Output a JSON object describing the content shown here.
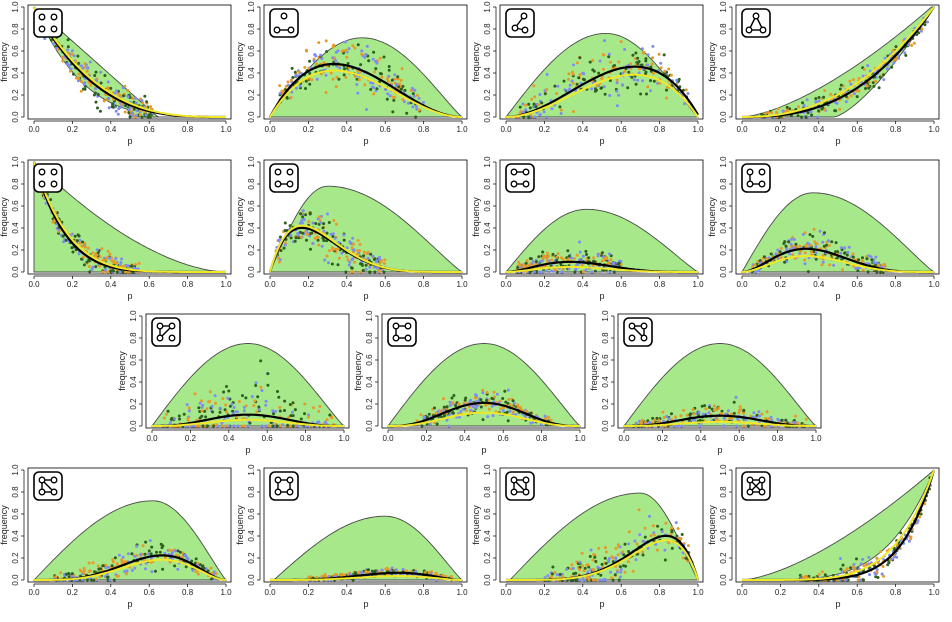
{
  "figure": {
    "description_axes": {
      "xlabel": "p",
      "ylabel": "frequency"
    },
    "colors": {
      "envelope_fill": "#a6e88a",
      "envelope_stroke": "#4a4a4a",
      "expected_curve": "#000000",
      "fitted_curve": "#f2e82a",
      "points": [
        "#2f5f1e",
        "#e89a28",
        "#7f8cf0"
      ]
    }
  },
  "chart_data": [
    {
      "type": "scatter",
      "panel": 1,
      "graph": "4 isolated nodes",
      "icon": "empty4",
      "xlabel": "p",
      "ylabel": "frequency",
      "xlim": [
        0,
        1
      ],
      "ylim": [
        0,
        1
      ],
      "xticks": [
        "0.0",
        "0.2",
        "0.4",
        "0.6",
        "0.8",
        "1.0"
      ],
      "yticks": [
        "0.0",
        "0.2",
        "0.4",
        "0.6",
        "0.8",
        "1.0"
      ],
      "model": "iso4",
      "envelope": "iso4",
      "cloud": {
        "from": 0.05,
        "to": 0.62,
        "spread": 0.08
      }
    },
    {
      "type": "scatter",
      "panel": 2,
      "graph": "single edge + 2 isolated",
      "icon": "edge1",
      "xlabel": "p",
      "ylabel": "frequency",
      "xlim": [
        0,
        1
      ],
      "ylim": [
        0,
        1
      ],
      "xticks": [
        "0.0",
        "0.2",
        "0.4",
        "0.6",
        "0.8",
        "1.0"
      ],
      "yticks": [
        "0.0",
        "0.2",
        "0.4",
        "0.6",
        "0.8",
        "1.0"
      ],
      "model": "edge1",
      "envelope": "env_edge1",
      "cloud": {
        "from": 0.05,
        "to": 0.8,
        "spread": 0.12
      }
    },
    {
      "type": "scatter",
      "panel": 3,
      "graph": "path of 2 edges + isolated",
      "icon": "path2",
      "xlabel": "p",
      "ylabel": "frequency",
      "xlim": [
        0,
        1
      ],
      "ylim": [
        0,
        1
      ],
      "xticks": [
        "0.0",
        "0.2",
        "0.4",
        "0.6",
        "0.8",
        "1.0"
      ],
      "yticks": [
        "0.0",
        "0.2",
        "0.4",
        "0.6",
        "0.8",
        "1.0"
      ],
      "model": "path2",
      "envelope": "env_path2",
      "cloud": {
        "from": 0.05,
        "to": 0.95,
        "spread": 0.12
      }
    },
    {
      "type": "scatter",
      "panel": 4,
      "graph": "triangle + isolated",
      "icon": "tri",
      "xlabel": "p",
      "ylabel": "frequency",
      "xlim": [
        0,
        1
      ],
      "ylim": [
        0,
        1
      ],
      "xticks": [
        "0.0",
        "0.2",
        "0.4",
        "0.6",
        "0.8",
        "1.0"
      ],
      "yticks": [
        "0.0",
        "0.2",
        "0.4",
        "0.6",
        "0.8",
        "1.0"
      ],
      "model": "tri",
      "envelope": "env_tri",
      "cloud": {
        "from": 0.1,
        "to": 0.97,
        "spread": 0.06
      }
    },
    {
      "type": "scatter",
      "panel": 5,
      "graph": "4 isolated nodes (second model)",
      "icon": "empty4",
      "xlabel": "p",
      "ylabel": "frequency",
      "xlim": [
        0,
        1
      ],
      "ylim": [
        0,
        1
      ],
      "xticks": [
        "0.0",
        "0.2",
        "0.4",
        "0.6",
        "0.8",
        "1.0"
      ],
      "yticks": [
        "0.0",
        "0.2",
        "0.4",
        "0.6",
        "0.8",
        "1.0"
      ],
      "model": "iso4b",
      "envelope": "env_iso4b",
      "cloud": {
        "from": 0.03,
        "to": 0.55,
        "spread": 0.06
      }
    },
    {
      "type": "scatter",
      "panel": 6,
      "graph": "single edge (second model)",
      "icon": "edge1b",
      "xlabel": "p",
      "ylabel": "frequency",
      "xlim": [
        0,
        1
      ],
      "ylim": [
        0,
        1
      ],
      "xticks": [
        "0.0",
        "0.2",
        "0.4",
        "0.6",
        "0.8",
        "1.0"
      ],
      "yticks": [
        "0.0",
        "0.2",
        "0.4",
        "0.6",
        "0.8",
        "1.0"
      ],
      "model": "edge1b",
      "envelope": "env_edge1b",
      "cloud": {
        "from": 0.03,
        "to": 0.6,
        "spread": 0.1
      }
    },
    {
      "type": "scatter",
      "panel": 7,
      "graph": "two disjoint edges",
      "icon": "twoedges",
      "xlabel": "p",
      "ylabel": "frequency",
      "xlim": [
        0,
        1
      ],
      "ylim": [
        0,
        1
      ],
      "xticks": [
        "0.0",
        "0.2",
        "0.4",
        "0.6",
        "0.8",
        "1.0"
      ],
      "yticks": [
        "0.0",
        "0.2",
        "0.4",
        "0.6",
        "0.8",
        "1.0"
      ],
      "model": "twoedges",
      "envelope": "env_twoedges",
      "cloud": {
        "from": 0.05,
        "to": 0.6,
        "spread": 0.07
      }
    },
    {
      "type": "scatter",
      "panel": 8,
      "graph": "path of 2 edges",
      "icon": "path2b",
      "xlabel": "p",
      "ylabel": "frequency",
      "xlim": [
        0,
        1
      ],
      "ylim": [
        0,
        1
      ],
      "xticks": [
        "0.0",
        "0.2",
        "0.4",
        "0.6",
        "0.8",
        "1.0"
      ],
      "yticks": [
        "0.0",
        "0.2",
        "0.4",
        "0.6",
        "0.8",
        "1.0"
      ],
      "model": "path2b",
      "envelope": "env_path2b",
      "cloud": {
        "from": 0.05,
        "to": 0.75,
        "spread": 0.07
      }
    },
    {
      "type": "scatter",
      "panel": 9,
      "graph": "path of 3 edges",
      "icon": "path3",
      "xlabel": "p",
      "ylabel": "frequency",
      "xlim": [
        0,
        1
      ],
      "ylim": [
        0,
        1
      ],
      "xticks": [
        "0.0",
        "0.2",
        "0.4",
        "0.6",
        "0.8",
        "1.0"
      ],
      "yticks": [
        "0.0",
        "0.2",
        "0.4",
        "0.6",
        "0.8",
        "1.0"
      ],
      "model": "path3",
      "envelope": "env_mid",
      "cloud": {
        "from": 0.05,
        "to": 0.95,
        "spread": 0.16
      }
    },
    {
      "type": "scatter",
      "panel": 10,
      "graph": "path of 3 edges (U shape)",
      "icon": "path3u",
      "xlabel": "p",
      "ylabel": "frequency",
      "xlim": [
        0,
        1
      ],
      "ylim": [
        0,
        1
      ],
      "xticks": [
        "0.0",
        "0.2",
        "0.4",
        "0.6",
        "0.8",
        "1.0"
      ],
      "yticks": [
        "0.0",
        "0.2",
        "0.4",
        "0.6",
        "0.8",
        "1.0"
      ],
      "model": "path3u",
      "envelope": "env_mid",
      "cloud": {
        "from": 0.15,
        "to": 0.85,
        "spread": 0.06
      }
    },
    {
      "type": "scatter",
      "panel": 11,
      "graph": "triangle with pendant",
      "icon": "tripend",
      "xlabel": "p",
      "ylabel": "frequency",
      "xlim": [
        0,
        1
      ],
      "ylim": [
        0,
        1
      ],
      "xticks": [
        "0.0",
        "0.2",
        "0.4",
        "0.6",
        "0.8",
        "1.0"
      ],
      "yticks": [
        "0.0",
        "0.2",
        "0.4",
        "0.6",
        "0.8",
        "1.0"
      ],
      "model": "tripend",
      "envelope": "env_mid",
      "cloud": {
        "from": 0.05,
        "to": 0.95,
        "spread": 0.05
      }
    },
    {
      "type": "scatter",
      "panel": 12,
      "graph": "triangle with pendant + diagonal",
      "icon": "tripend2",
      "xlabel": "p",
      "ylabel": "frequency",
      "xlim": [
        0,
        1
      ],
      "ylim": [
        0,
        1
      ],
      "xticks": [
        "0.0",
        "0.2",
        "0.4",
        "0.6",
        "0.8",
        "1.0"
      ],
      "yticks": [
        "0.0",
        "0.2",
        "0.4",
        "0.6",
        "0.8",
        "1.0"
      ],
      "model": "tripend2",
      "envelope": "env_r1",
      "cloud": {
        "from": 0.1,
        "to": 0.95,
        "spread": 0.06
      }
    },
    {
      "type": "scatter",
      "panel": 13,
      "graph": "4-cycle",
      "icon": "cycle4",
      "xlabel": "p",
      "ylabel": "frequency",
      "xlim": [
        0,
        1
      ],
      "ylim": [
        0,
        1
      ],
      "xticks": [
        "0.0",
        "0.2",
        "0.4",
        "0.6",
        "0.8",
        "1.0"
      ],
      "yticks": [
        "0.0",
        "0.2",
        "0.4",
        "0.6",
        "0.8",
        "1.0"
      ],
      "model": "cycle4",
      "envelope": "env_r2",
      "cloud": {
        "from": 0.2,
        "to": 0.95,
        "spread": 0.02
      }
    },
    {
      "type": "scatter",
      "panel": 14,
      "graph": "diamond (4-cycle + diagonal)",
      "icon": "diamond",
      "xlabel": "p",
      "ylabel": "frequency",
      "xlim": [
        0,
        1
      ],
      "ylim": [
        0,
        1
      ],
      "xticks": [
        "0.0",
        "0.2",
        "0.4",
        "0.6",
        "0.8",
        "1.0"
      ],
      "yticks": [
        "0.0",
        "0.2",
        "0.4",
        "0.6",
        "0.8",
        "1.0"
      ],
      "model": "diamond",
      "envelope": "env_r3",
      "cloud": {
        "from": 0.2,
        "to": 0.97,
        "spread": 0.1
      }
    },
    {
      "type": "scatter",
      "panel": 15,
      "graph": "complete graph K4",
      "icon": "k4",
      "xlabel": "p",
      "ylabel": "frequency",
      "xlim": [
        0,
        1
      ],
      "ylim": [
        0,
        1
      ],
      "xticks": [
        "0.0",
        "0.2",
        "0.4",
        "0.6",
        "0.8",
        "1.0"
      ],
      "yticks": [
        "0.0",
        "0.2",
        "0.4",
        "0.6",
        "0.8",
        "1.0"
      ],
      "model": "k4",
      "envelope": "env_k4",
      "cloud": {
        "from": 0.3,
        "to": 0.99,
        "spread": 0.06
      }
    }
  ]
}
